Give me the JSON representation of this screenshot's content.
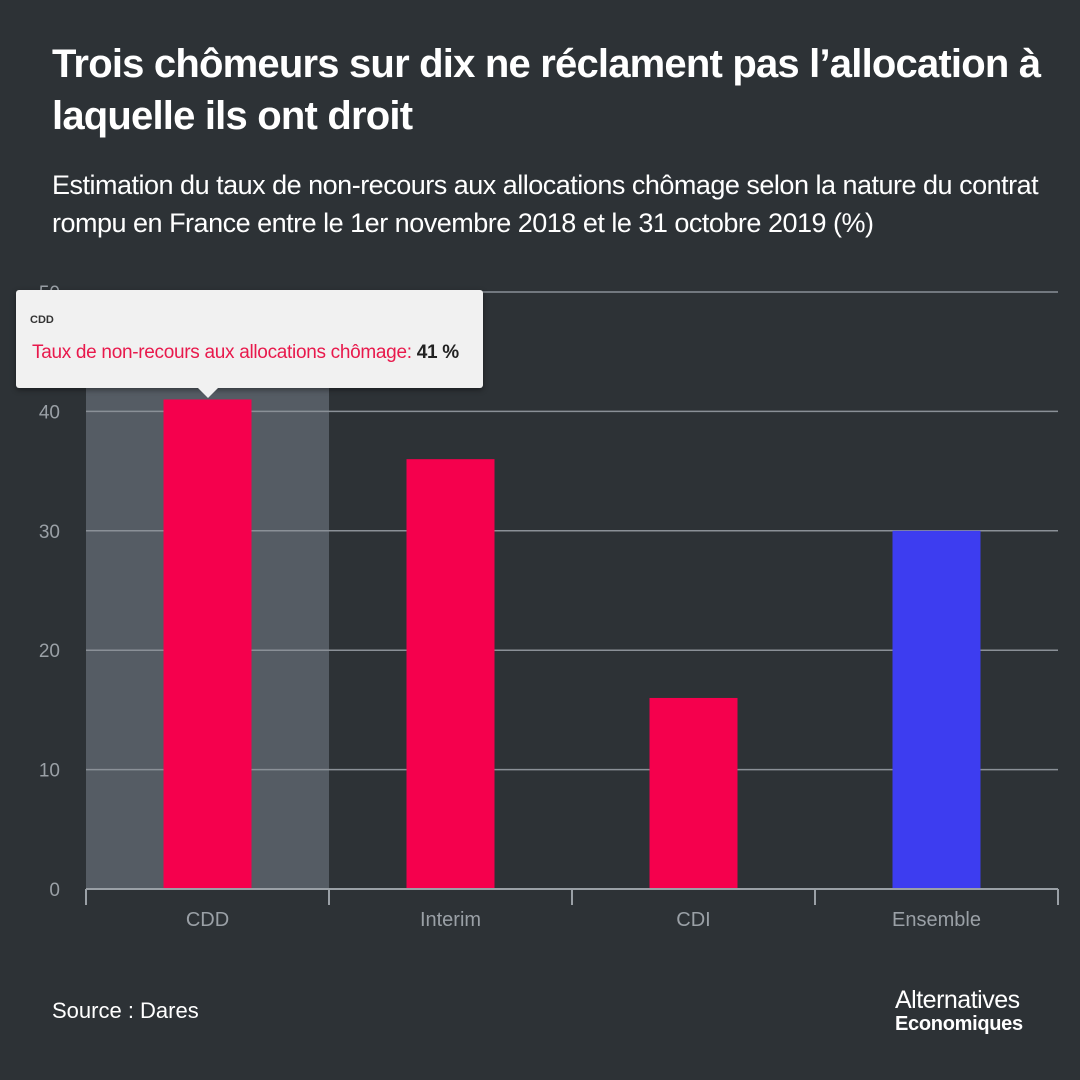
{
  "header": {
    "title": "Trois chômeurs sur dix ne réclament pas l’allocation à laquelle ils ont droit",
    "subtitle": "Estimation du taux de non-recours aux allocations chômage selon la nature du contrat rompu en France entre le 1er novembre 2018 et le 31 octobre 2019 (%)"
  },
  "chart_data": {
    "type": "bar",
    "categories": [
      "CDD",
      "Interim",
      "CDI",
      "Ensemble"
    ],
    "series": [
      {
        "name": "Taux de non-recours aux allocations chômage",
        "values": [
          41,
          36,
          16,
          30
        ]
      }
    ],
    "bar_colors": [
      "#f5004d",
      "#f5004d",
      "#f5004d",
      "#3d3df0"
    ],
    "ylim": [
      0,
      50
    ],
    "yticks": [
      0,
      10,
      20,
      30,
      40,
      50
    ],
    "grid": true,
    "legend": "none",
    "highlighted_category": "CDD"
  },
  "tooltip": {
    "category": "CDD",
    "label": "Taux de non-recours aux allocations chômage:",
    "value": "41 %"
  },
  "footer": {
    "source": "Source : Dares",
    "logo_line1": "Alternatives",
    "logo_line2": "Economiques"
  },
  "colors": {
    "background": "#2d3236",
    "accent_red": "#f5004d",
    "accent_blue": "#3d3df0",
    "gridline": "#8a9097",
    "axis_text": "#9aa0a6",
    "highlight_band": "#555c64"
  }
}
